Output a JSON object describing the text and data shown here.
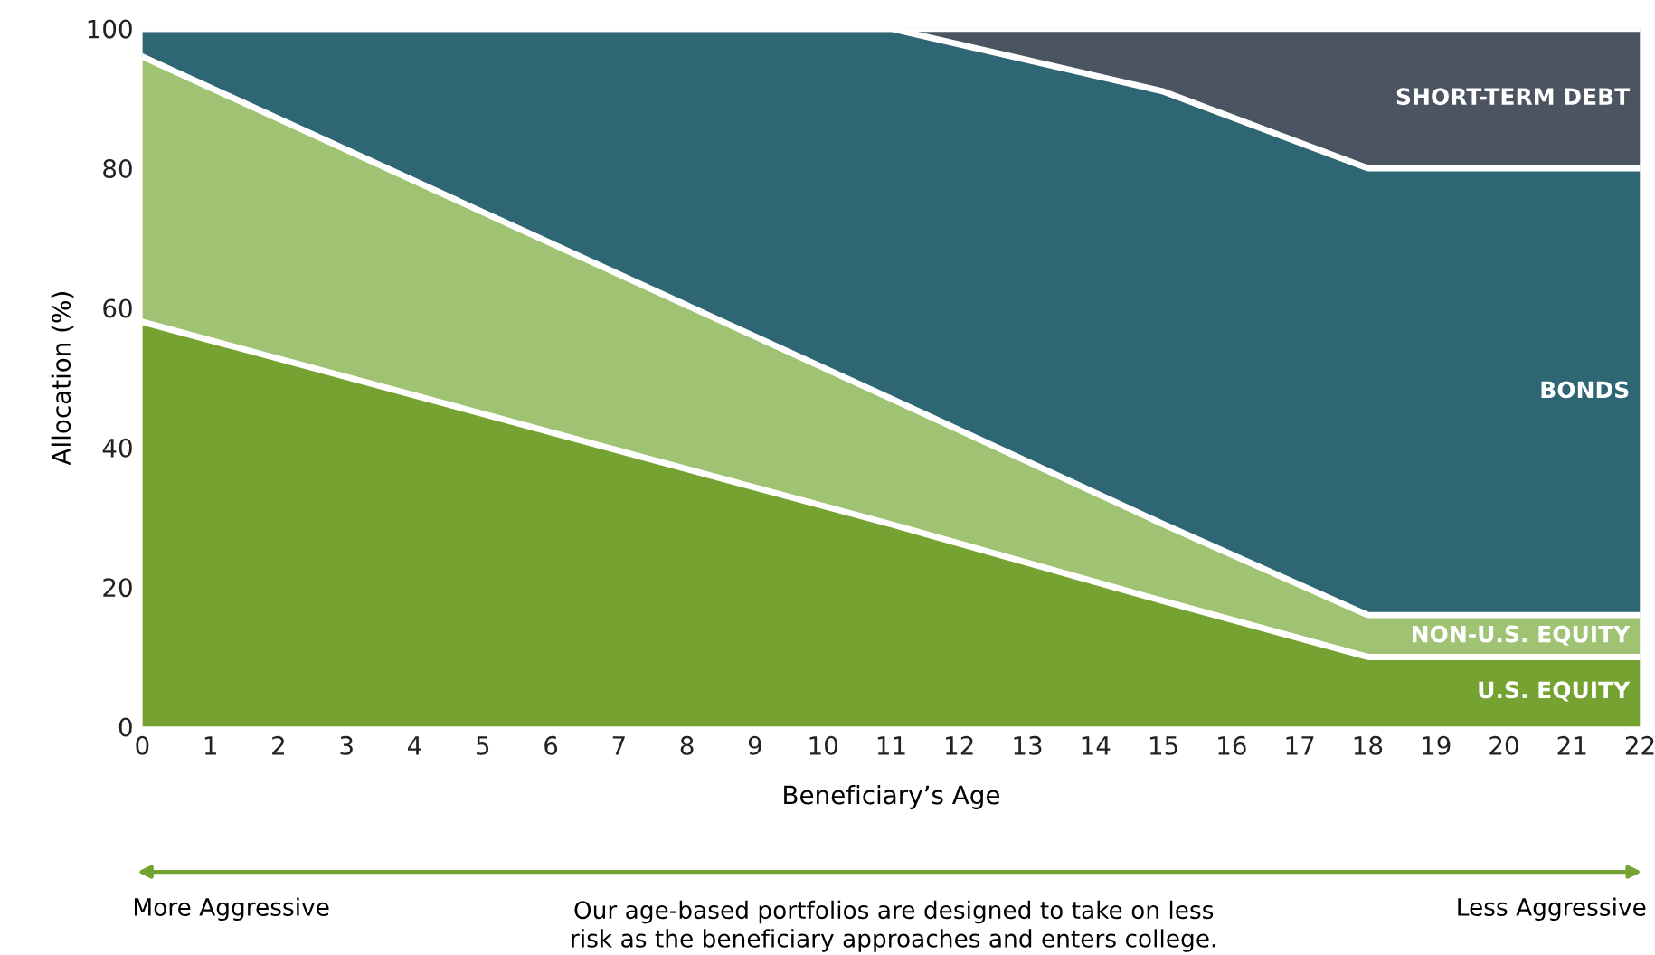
{
  "chart_data": {
    "type": "area",
    "stacked": true,
    "xlabel": "Beneficiary’s Age",
    "ylabel": "Allocation (%)",
    "x": [
      0,
      11,
      15,
      18,
      22
    ],
    "series": [
      {
        "name": "U.S. EQUITY",
        "color": "#76a232",
        "values": [
          58,
          29,
          18,
          10,
          10
        ]
      },
      {
        "name": "NON-U.S. EQUITY",
        "color": "#a0c373",
        "values": [
          38,
          18,
          11,
          6,
          6
        ]
      },
      {
        "name": "BONDS",
        "color": "#2e6674",
        "values": [
          4,
          53,
          62,
          64,
          64
        ]
      },
      {
        "name": "SHORT-TERM DEBT",
        "color": "#4a5561",
        "values": [
          0,
          0,
          9,
          20,
          20
        ]
      }
    ],
    "xlim": [
      0,
      22
    ],
    "xticks": [
      0,
      1,
      2,
      3,
      4,
      5,
      6,
      7,
      8,
      9,
      10,
      11,
      12,
      13,
      14,
      15,
      16,
      17,
      18,
      19,
      20,
      21,
      22
    ],
    "ylim": [
      0,
      100
    ],
    "yticks": [
      0,
      20,
      40,
      60,
      80,
      100
    ],
    "grid": false,
    "legend": false,
    "annotations": [
      "More Aggressive",
      "Our age-based portfolios are designed to take on less risk as the beneficiary approaches and enters college.",
      "Less Aggressive"
    ]
  }
}
